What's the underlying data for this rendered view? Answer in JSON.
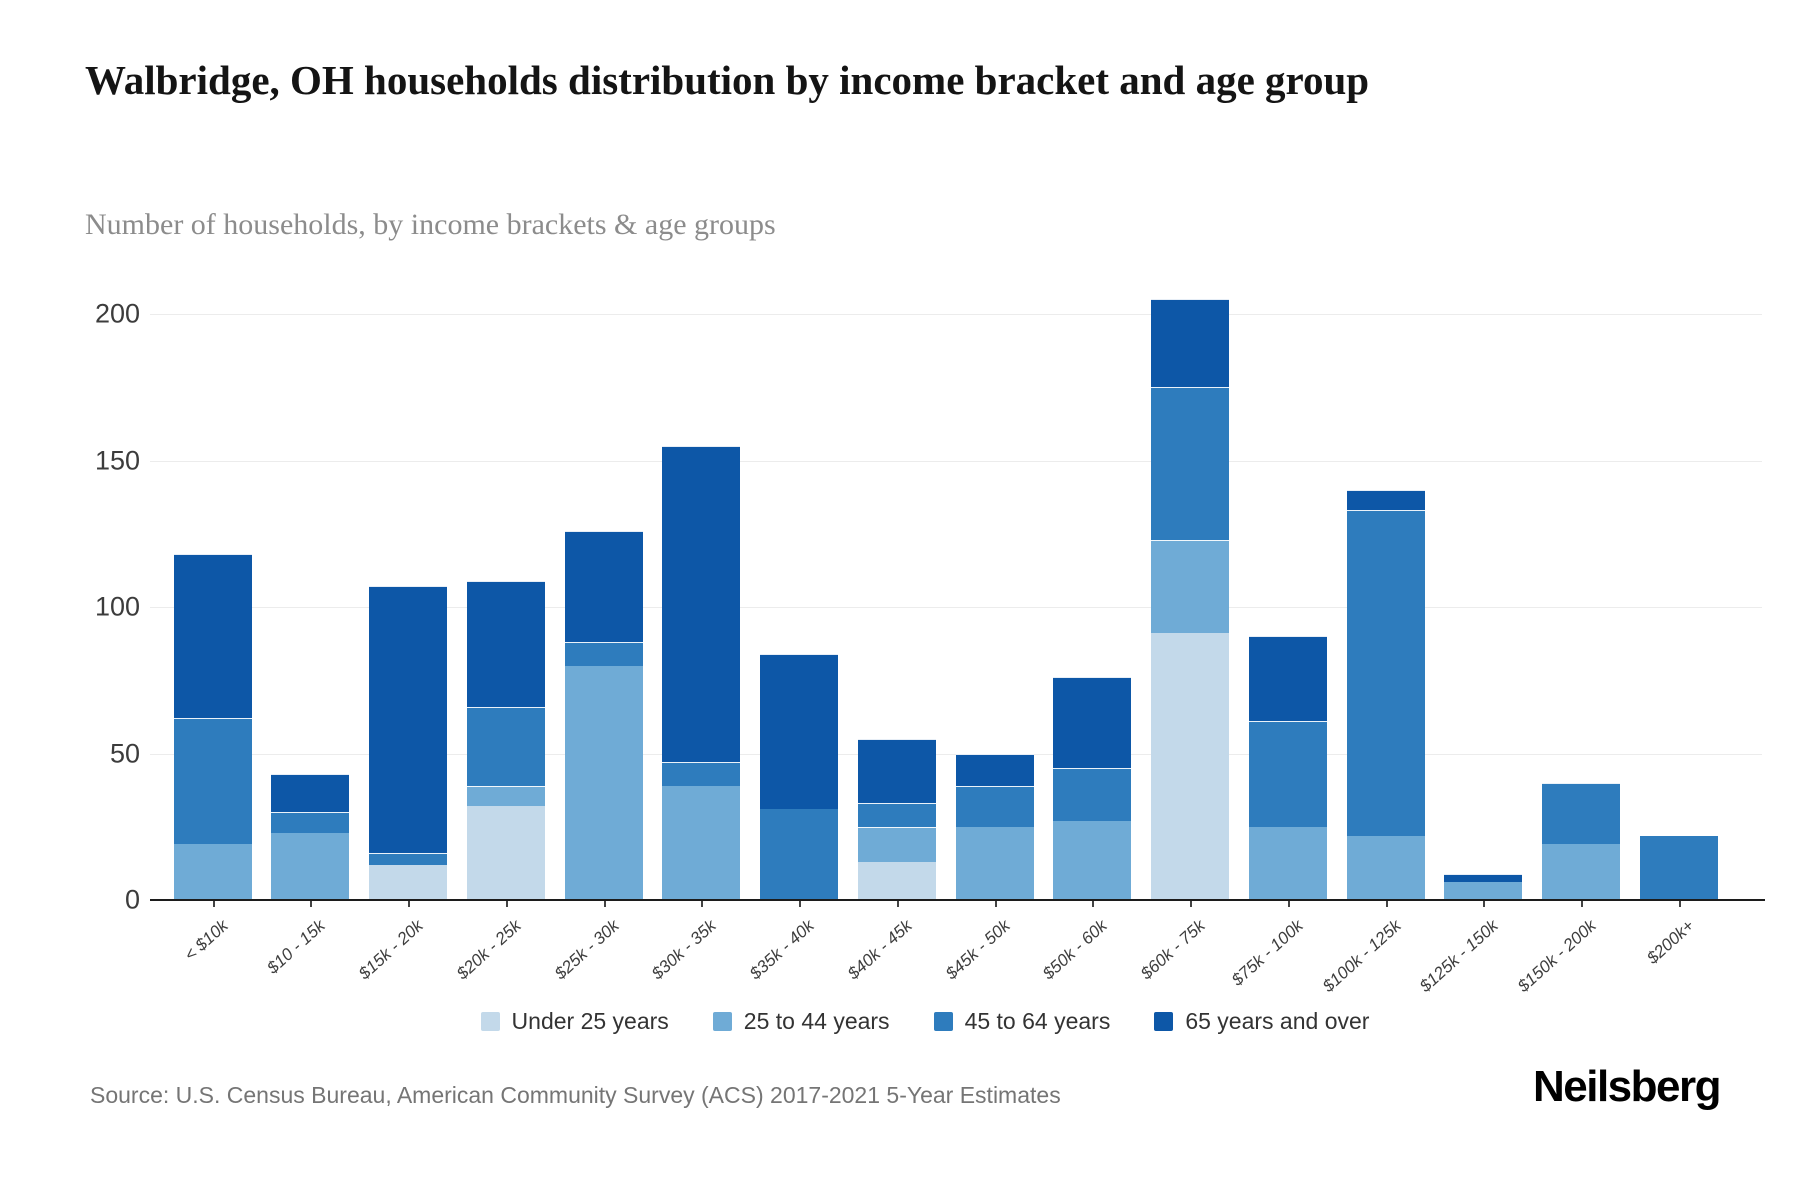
{
  "header": {
    "title": "Walbridge, OH households distribution by income bracket and age group",
    "subtitle": "Number of households, by income brackets & age groups"
  },
  "chart_data": {
    "type": "bar",
    "stacked": true,
    "title": "Walbridge, OH households distribution by income bracket and age group",
    "xlabel": "",
    "ylabel": "Number of households",
    "ylim": [
      0,
      210
    ],
    "yticks": [
      0,
      50,
      100,
      150,
      200
    ],
    "grid": true,
    "legend_position": "bottom",
    "categories": [
      "< $10k",
      "$10 - 15k",
      "$15k - 20k",
      "$20k - 25k",
      "$25k - 30k",
      "$30k - 35k",
      "$35k - 40k",
      "$40k - 45k",
      "$45k - 50k",
      "$50k - 60k",
      "$60k - 75k",
      "$75k - 100k",
      "$100k - 125k",
      "$125k - 150k",
      "$150k - 200k",
      "$200k+"
    ],
    "series": [
      {
        "name": "Under 25 years",
        "color": "#c3d9ea",
        "values": [
          0,
          0,
          12,
          32,
          0,
          0,
          0,
          13,
          0,
          0,
          91,
          0,
          0,
          0,
          0,
          0
        ]
      },
      {
        "name": "25 to 44 years",
        "color": "#6fabd6",
        "values": [
          19,
          23,
          0,
          7,
          80,
          39,
          0,
          12,
          25,
          27,
          32,
          25,
          22,
          6,
          19,
          0
        ]
      },
      {
        "name": "45 to 64 years",
        "color": "#2e7cbd",
        "values": [
          43,
          7,
          4,
          27,
          8,
          8,
          31,
          8,
          14,
          18,
          52,
          36,
          111,
          0,
          21,
          22
        ]
      },
      {
        "name": "65 years and over",
        "color": "#0d57a7",
        "values": [
          56,
          13,
          91,
          43,
          38,
          108,
          53,
          22,
          11,
          31,
          30,
          29,
          7,
          3,
          0,
          0
        ]
      }
    ],
    "totals": [
      118,
      43,
      107,
      109,
      126,
      155,
      84,
      55,
      50,
      76,
      205,
      90,
      140,
      9,
      40,
      22
    ]
  },
  "footer": {
    "source": "Source: U.S. Census Bureau, American Community Survey (ACS) 2017-2021 5-Year Estimates",
    "brand": "Neilsberg"
  }
}
